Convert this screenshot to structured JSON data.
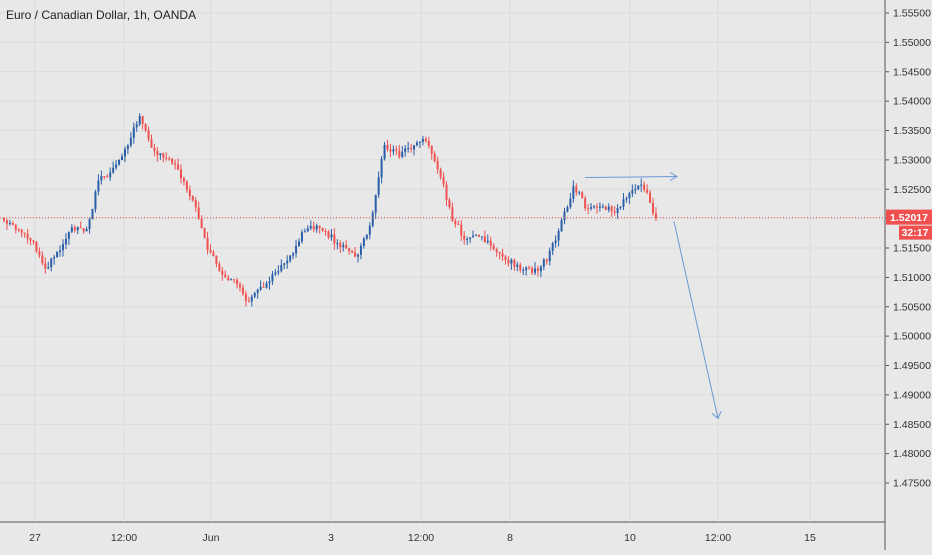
{
  "chart_data": {
    "type": "candlestick",
    "title": "Euro / Canadian Dollar, 1h, OANDA",
    "y_axis": {
      "position": "right",
      "range": [
        1.47,
        1.5575
      ],
      "tick_labels": [
        "1.55500",
        "1.55000",
        "1.54500",
        "1.54000",
        "1.53500",
        "1.53000",
        "1.52500",
        "1.52000",
        "1.51500",
        "1.51000",
        "1.50500",
        "1.50000",
        "1.49500",
        "1.49000",
        "1.48500",
        "1.48000",
        "1.47500"
      ]
    },
    "x_axis": {
      "tick_labels": [
        "27",
        "12:00",
        "Jun",
        "3",
        "12:00",
        "8",
        "10",
        "12:00",
        "15"
      ]
    },
    "last_price": {
      "value": 1.52017,
      "label": "1.52017",
      "countdown": "32:17",
      "color": "#f0504f"
    },
    "colors": {
      "up": "#2a5ea8",
      "down": "#f0504f",
      "annotation": "#6a98d8",
      "price_line": "#f0504f"
    },
    "price_path": [
      1.52,
      1.5185,
      1.5165,
      1.5115,
      1.514,
      1.5185,
      1.5175,
      1.5265,
      1.528,
      1.532,
      1.538,
      1.5315,
      1.5305,
      1.5275,
      1.5225,
      1.515,
      1.5105,
      1.509,
      1.506,
      1.5085,
      1.511,
      1.513,
      1.5175,
      1.519,
      1.517,
      1.515,
      1.5135,
      1.519,
      1.5325,
      1.531,
      1.532,
      1.5335,
      1.5285,
      1.52,
      1.5165,
      1.517,
      1.515,
      1.513,
      1.5115,
      1.511,
      1.513,
      1.519,
      1.5255,
      1.5215,
      1.5225,
      1.521,
      1.524,
      1.526,
      1.5202
    ],
    "annotations": [
      {
        "kind": "horizontal-arrow",
        "y": 1.527,
        "direction": "right"
      },
      {
        "kind": "diagonal-arrow",
        "from_y": 1.5195,
        "to_y": 1.486,
        "direction": "down"
      }
    ]
  }
}
